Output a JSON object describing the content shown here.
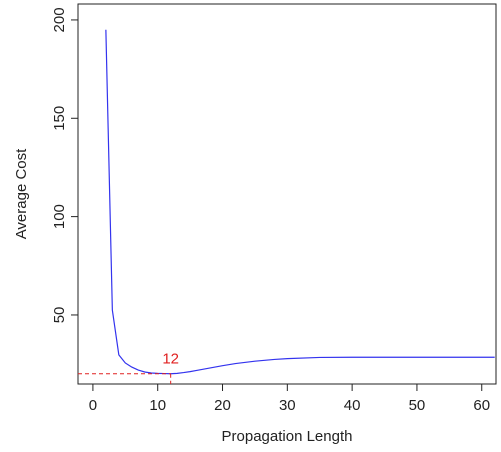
{
  "chart_data": {
    "type": "line",
    "x_label": "Propagation Length",
    "y_label": "Average Cost",
    "x": [
      2,
      3,
      4,
      5,
      6,
      7,
      8,
      9,
      10,
      11,
      12,
      13,
      14,
      15,
      16,
      18,
      20,
      22,
      25,
      28,
      30,
      35,
      40,
      50,
      62
    ],
    "series": [
      {
        "color": "#3333ee",
        "values": [
          195,
          52.5,
          29.7,
          25.6,
          23.5,
          22,
          21,
          20.5,
          20.3,
          20.2,
          20.1,
          20.3,
          20.7,
          21.2,
          21.8,
          23,
          24.2,
          25.3,
          26.5,
          27.4,
          27.8,
          28.4,
          28.5,
          28.5,
          28.5
        ]
      }
    ],
    "annotation": {
      "label": "12",
      "x": 12,
      "y": 20.1,
      "color": "#e02020"
    },
    "xlim": [
      -2.3,
      62.2
    ],
    "ylim": [
      14.9,
      208.1
    ],
    "xticks": [
      0,
      10,
      20,
      30,
      40,
      50,
      60
    ],
    "yticks": [
      50,
      100,
      150,
      200
    ]
  }
}
